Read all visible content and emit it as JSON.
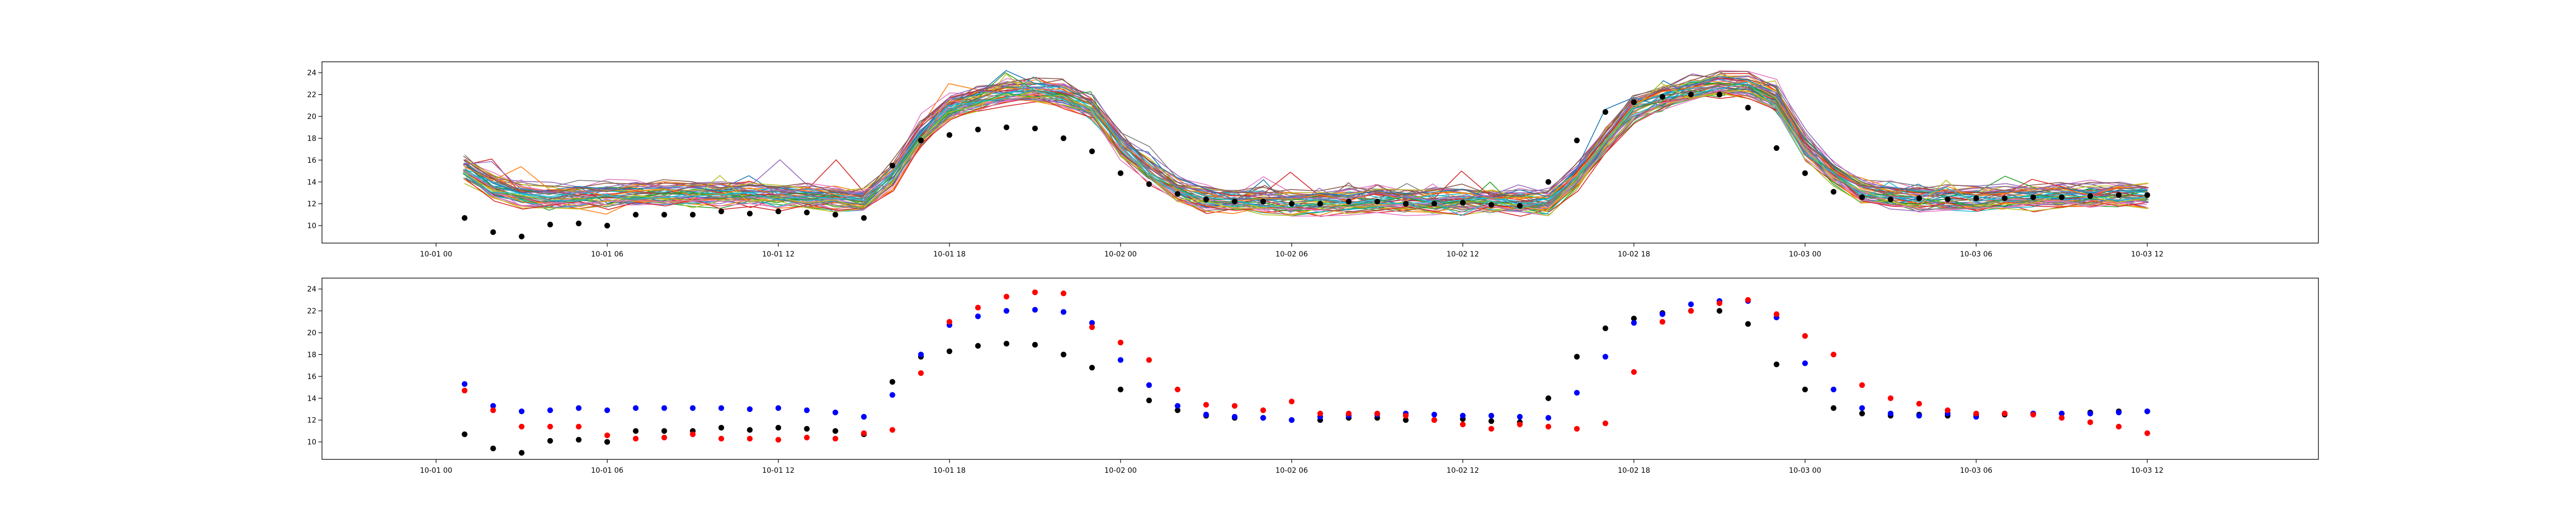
{
  "chart_data": [
    {
      "type": "line",
      "title": "",
      "xlabel": "",
      "ylabel": "",
      "x_range_hours": [
        -4,
        66
      ],
      "ylim": [
        8.4,
        25
      ],
      "grid": false,
      "legend": "none",
      "x_ticks": [
        {
          "label": "10-01 00",
          "hour": 0
        },
        {
          "label": "10-01 06",
          "hour": 6
        },
        {
          "label": "10-01 12",
          "hour": 12
        },
        {
          "label": "10-01 18",
          "hour": 18
        },
        {
          "label": "10-02 00",
          "hour": 24
        },
        {
          "label": "10-02 06",
          "hour": 30
        },
        {
          "label": "10-02 12",
          "hour": 36
        },
        {
          "label": "10-02 18",
          "hour": 42
        },
        {
          "label": "10-03 00",
          "hour": 48
        },
        {
          "label": "10-03 06",
          "hour": 54
        },
        {
          "label": "10-03 12",
          "hour": 60
        }
      ],
      "y_ticks": [
        "10",
        "12",
        "14",
        "16",
        "18",
        "20",
        "22",
        "24"
      ],
      "y_tick_values": [
        10,
        12,
        14,
        16,
        18,
        20,
        22,
        24
      ],
      "ensemble_member_count": 50,
      "ensemble_mean": {
        "x_hours": [
          1,
          2,
          3,
          4,
          5,
          6,
          7,
          8,
          9,
          10,
          11,
          12,
          13,
          14,
          15,
          16,
          17,
          18,
          19,
          20,
          21,
          22,
          23,
          24,
          25,
          26,
          27,
          28,
          29,
          30,
          31,
          32,
          33,
          34,
          35,
          36,
          37,
          38,
          39,
          40,
          41,
          42,
          43,
          44,
          45,
          46,
          47,
          48,
          49,
          50,
          51,
          52,
          53,
          54,
          55,
          56,
          57,
          58,
          59,
          60
        ],
        "y": [
          15.2,
          13.6,
          12.8,
          12.6,
          12.7,
          12.8,
          12.8,
          12.9,
          12.9,
          12.9,
          12.9,
          12.8,
          12.7,
          12.5,
          12.3,
          14.5,
          18.3,
          20.8,
          21.6,
          22.2,
          22.4,
          22.0,
          20.8,
          17.4,
          15.0,
          13.3,
          12.4,
          12.2,
          12.2,
          12.1,
          12.2,
          12.3,
          12.3,
          12.3,
          12.3,
          12.3,
          12.2,
          12.2,
          12.1,
          14.5,
          17.8,
          20.7,
          21.7,
          22.5,
          22.9,
          22.8,
          21.5,
          17.3,
          14.8,
          13.2,
          12.7,
          12.5,
          12.5,
          12.5,
          12.6,
          12.6,
          12.7,
          12.7,
          12.8,
          12.8
        ]
      },
      "observations": {
        "color": "#000000",
        "x_hours": [
          1,
          2,
          3,
          4,
          5,
          6,
          7,
          8,
          9,
          10,
          11,
          12,
          13,
          14,
          15,
          16,
          17,
          18,
          19,
          20,
          21,
          22,
          23,
          24,
          25,
          26,
          27,
          28,
          29,
          30,
          31,
          32,
          33,
          34,
          35,
          36,
          37,
          38,
          39,
          40,
          41,
          42,
          43,
          44,
          45,
          46,
          47,
          48,
          49,
          50,
          51,
          52,
          53,
          54,
          55,
          56,
          57,
          58,
          59,
          60
        ],
        "y": [
          10.7,
          9.4,
          9.0,
          10.1,
          10.2,
          10.0,
          11.0,
          11.0,
          11.0,
          11.3,
          11.1,
          11.3,
          11.2,
          11.0,
          10.7,
          15.5,
          17.8,
          18.3,
          18.8,
          19.0,
          18.9,
          18.0,
          16.8,
          14.8,
          13.8,
          12.9,
          12.4,
          12.2,
          12.2,
          12.0,
          12.0,
          12.2,
          12.2,
          12.0,
          12.0,
          12.1,
          11.9,
          11.8,
          14.0,
          17.8,
          20.4,
          21.3,
          21.8,
          22.0,
          22.0,
          20.8,
          17.1,
          14.8,
          13.1,
          12.6,
          12.4,
          12.5,
          12.4,
          12.5,
          12.5,
          12.6,
          12.6,
          12.7,
          12.8,
          12.8
        ]
      }
    },
    {
      "type": "scatter",
      "title": "",
      "xlabel": "",
      "ylabel": "",
      "x_range_hours": [
        -4,
        66
      ],
      "ylim": [
        8.4,
        25
      ],
      "grid": false,
      "legend": "none",
      "x_ticks": [
        {
          "label": "10-01 00",
          "hour": 0
        },
        {
          "label": "10-01 06",
          "hour": 6
        },
        {
          "label": "10-01 12",
          "hour": 12
        },
        {
          "label": "10-01 18",
          "hour": 18
        },
        {
          "label": "10-02 00",
          "hour": 24
        },
        {
          "label": "10-02 06",
          "hour": 30
        },
        {
          "label": "10-02 12",
          "hour": 36
        },
        {
          "label": "10-02 18",
          "hour": 42
        },
        {
          "label": "10-03 00",
          "hour": 48
        },
        {
          "label": "10-03 06",
          "hour": 54
        },
        {
          "label": "10-03 12",
          "hour": 60
        }
      ],
      "y_ticks": [
        "10",
        "12",
        "14",
        "16",
        "18",
        "20",
        "22",
        "24"
      ],
      "y_tick_values": [
        10,
        12,
        14,
        16,
        18,
        20,
        22,
        24
      ],
      "x_hours": [
        1,
        2,
        3,
        4,
        5,
        6,
        7,
        8,
        9,
        10,
        11,
        12,
        13,
        14,
        15,
        16,
        17,
        18,
        19,
        20,
        21,
        22,
        23,
        24,
        25,
        26,
        27,
        28,
        29,
        30,
        31,
        32,
        33,
        34,
        35,
        36,
        37,
        38,
        39,
        40,
        41,
        42,
        43,
        44,
        45,
        46,
        47,
        48,
        49,
        50,
        51,
        52,
        53,
        54,
        55,
        56,
        57,
        58,
        59,
        60
      ],
      "series": [
        {
          "color": "#000000",
          "values": [
            10.7,
            9.4,
            9.0,
            10.1,
            10.2,
            10.0,
            11.0,
            11.0,
            11.0,
            11.3,
            11.1,
            11.3,
            11.2,
            11.0,
            10.7,
            15.5,
            17.8,
            18.3,
            18.8,
            19.0,
            18.9,
            18.0,
            16.8,
            14.8,
            13.8,
            12.9,
            12.4,
            12.2,
            12.2,
            12.0,
            12.0,
            12.2,
            12.2,
            12.0,
            12.0,
            12.1,
            11.9,
            11.8,
            14.0,
            17.8,
            20.4,
            21.3,
            21.8,
            22.0,
            22.0,
            20.8,
            17.1,
            14.8,
            13.1,
            12.6,
            12.4,
            12.5,
            12.4,
            12.5,
            12.5,
            12.6,
            12.6,
            12.7,
            12.8,
            12.8
          ]
        },
        {
          "color": "#0000ff",
          "values": [
            15.3,
            13.3,
            12.8,
            12.9,
            13.1,
            12.9,
            13.1,
            13.1,
            13.1,
            13.1,
            13.0,
            13.1,
            12.9,
            12.7,
            12.3,
            14.3,
            18.0,
            20.7,
            21.5,
            22.0,
            22.1,
            21.9,
            20.9,
            17.5,
            15.2,
            13.3,
            12.5,
            12.3,
            12.2,
            12.0,
            12.3,
            12.4,
            12.5,
            12.6,
            12.5,
            12.4,
            12.4,
            12.3,
            12.2,
            14.5,
            17.8,
            20.9,
            21.7,
            22.6,
            22.9,
            22.9,
            21.4,
            17.2,
            14.8,
            13.1,
            12.6,
            12.4,
            12.6,
            12.3,
            12.6,
            12.6,
            12.6,
            12.6,
            12.7,
            12.8
          ]
        },
        {
          "color": "#ff0000",
          "values": [
            14.7,
            12.9,
            11.4,
            11.4,
            11.4,
            10.6,
            10.3,
            10.4,
            10.7,
            10.3,
            10.3,
            10.2,
            10.4,
            10.3,
            10.8,
            11.1,
            16.3,
            21.0,
            22.3,
            23.3,
            23.7,
            23.6,
            20.5,
            19.1,
            17.5,
            14.8,
            13.4,
            13.3,
            12.9,
            13.7,
            12.6,
            12.6,
            12.6,
            12.4,
            12.0,
            11.6,
            11.2,
            11.6,
            11.4,
            11.2,
            11.7,
            16.4,
            21.0,
            22.0,
            22.7,
            23.0,
            21.7,
            19.7,
            18.0,
            15.2,
            14.0,
            13.5,
            12.9,
            12.6,
            12.6,
            12.5,
            12.2,
            11.8,
            11.4,
            10.8
          ]
        }
      ]
    }
  ]
}
